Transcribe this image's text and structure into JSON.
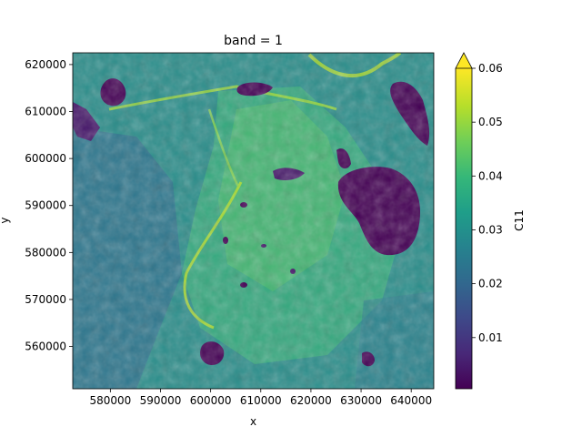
{
  "chart_data": {
    "type": "heatmap",
    "title": "band = 1",
    "xlabel": "x",
    "ylabel": "y",
    "xlim": [
      572500,
      644500
    ],
    "ylim": [
      551000,
      622500
    ],
    "x_ticks": [
      580000,
      590000,
      600000,
      610000,
      620000,
      630000,
      640000
    ],
    "x_tick_labels": [
      "580000",
      "590000",
      "600000",
      "610000",
      "620000",
      "630000",
      "640000"
    ],
    "y_ticks": [
      560000,
      570000,
      580000,
      590000,
      600000,
      610000,
      620000
    ],
    "y_tick_labels": [
      "560000",
      "570000",
      "580000",
      "590000",
      "600000",
      "610000",
      "620000"
    ],
    "colorbar": {
      "label": "C11",
      "colormap": "viridis",
      "vmin": 0.0005,
      "vmax": 0.06,
      "extend": "max",
      "ticks": [
        0.01,
        0.02,
        0.03,
        0.04,
        0.05,
        0.06
      ],
      "tick_labels": [
        "0.01",
        "0.02",
        "0.03",
        "0.04",
        "0.05",
        "0.06"
      ]
    },
    "grid": false,
    "colors": {
      "viridis": [
        "#440154",
        "#482878",
        "#3e4989",
        "#31688e",
        "#26828e",
        "#1f9e89",
        "#35b779",
        "#6ece58",
        "#b5de2b",
        "#fde725"
      ]
    }
  }
}
